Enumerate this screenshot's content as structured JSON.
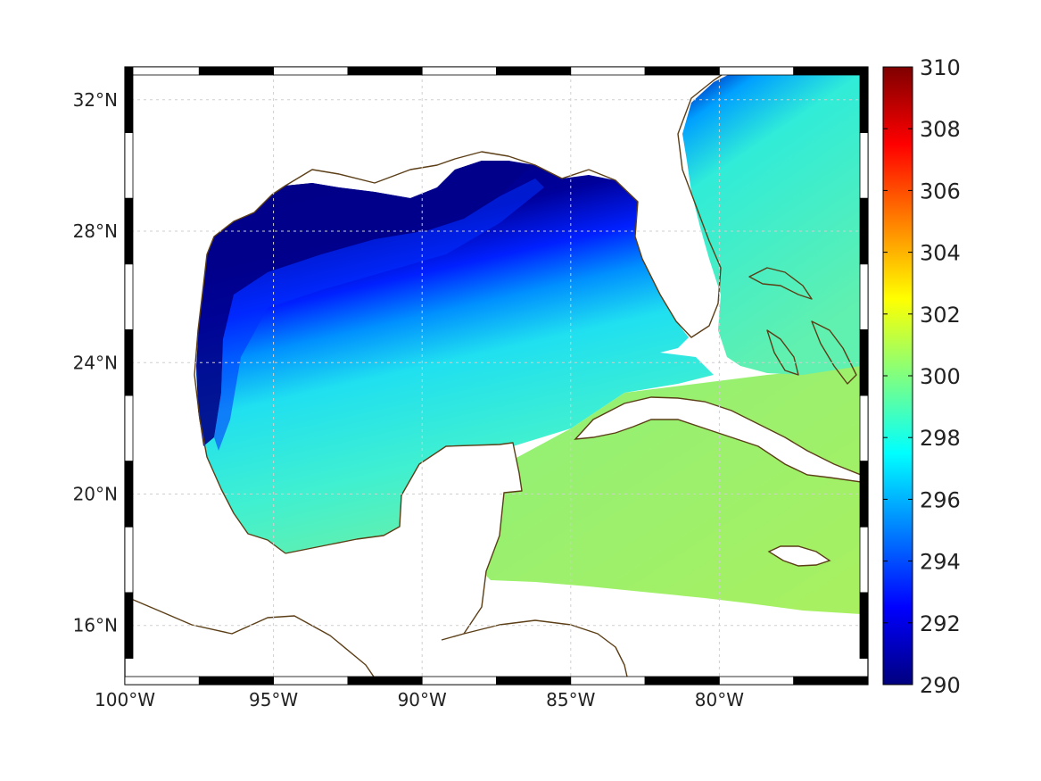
{
  "map": {
    "type": "sea-surface-temperature map (Gulf of Mexico / Caribbean)",
    "lon_range": [
      -100,
      -75
    ],
    "lat_range": [
      14.2,
      33
    ],
    "grid": true,
    "x_ticks": [
      {
        "lon": -100,
        "label": "100°W"
      },
      {
        "lon": -95,
        "label": "95°W"
      },
      {
        "lon": -90,
        "label": "90°W"
      },
      {
        "lon": -85,
        "label": "85°W"
      },
      {
        "lon": -80,
        "label": "80°W"
      }
    ],
    "y_ticks": [
      {
        "lat": 32,
        "label": "32°N"
      },
      {
        "lat": 28,
        "label": "28°N"
      },
      {
        "lat": 24,
        "label": "24°N"
      },
      {
        "lat": 20,
        "label": "20°N"
      },
      {
        "lat": 16,
        "label": "16°N"
      }
    ],
    "coastline_color": "#5b3e16",
    "land_color": "#ffffff"
  },
  "colorbar": {
    "min": 290,
    "max": 310,
    "colormap": "jet",
    "placement": "right",
    "tick_labels": [
      "310",
      "308",
      "306",
      "304",
      "302",
      "300",
      "298",
      "296",
      "294",
      "292",
      "290"
    ],
    "tick_values": [
      310,
      308,
      306,
      304,
      302,
      300,
      298,
      296,
      294,
      292,
      290
    ]
  }
}
